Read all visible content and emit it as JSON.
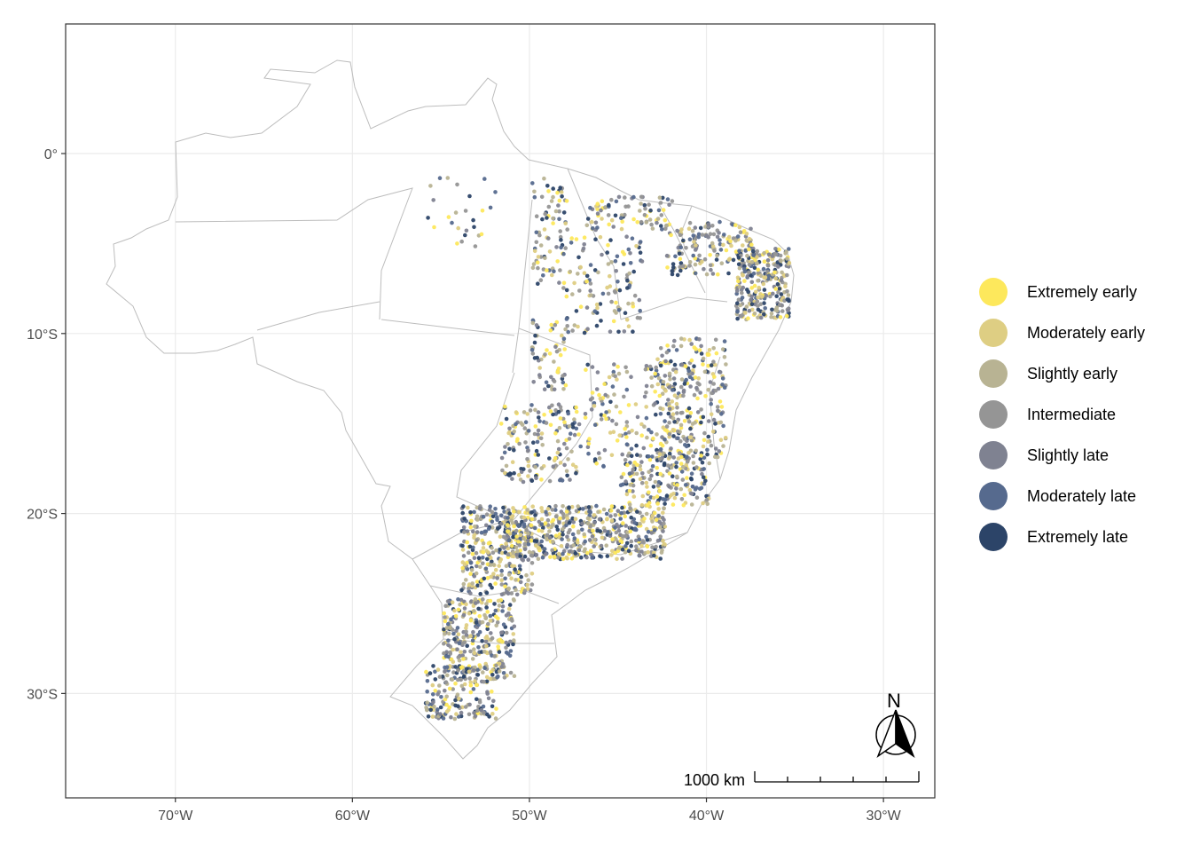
{
  "map": {
    "x_ticks": [
      {
        "lon": -70,
        "label": "70°W"
      },
      {
        "lon": -60,
        "label": "60°W"
      },
      {
        "lon": -50,
        "label": "50°W"
      },
      {
        "lon": -40,
        "label": "40°W"
      },
      {
        "lon": -30,
        "label": "30°W"
      }
    ],
    "y_ticks": [
      {
        "lat": 0,
        "label": "0°"
      },
      {
        "lat": -10,
        "label": "10°S"
      },
      {
        "lat": -20,
        "label": "20°S"
      },
      {
        "lat": -30,
        "label": "30°S"
      }
    ],
    "xlim": [
      -76.2,
      -27.1
    ],
    "ylim": [
      -35.8,
      7.2
    ],
    "grid": true,
    "boundary_color": "#bdbdbd",
    "legend": {
      "position": "right",
      "items": [
        {
          "label": "Extremely early",
          "color": "#FDE85C"
        },
        {
          "label": "Moderately early",
          "color": "#DECE83"
        },
        {
          "label": "Slightly early",
          "color": "#B8B393"
        },
        {
          "label": "Intermediate",
          "color": "#959595"
        },
        {
          "label": "Slightly late",
          "color": "#7F8291"
        },
        {
          "label": "Moderately late",
          "color": "#566A8E"
        },
        {
          "label": "Extremely late",
          "color": "#2C4468"
        }
      ]
    },
    "scale_bar": {
      "label": "1000 km"
    },
    "north_arrow": {
      "label": "N"
    }
  }
}
